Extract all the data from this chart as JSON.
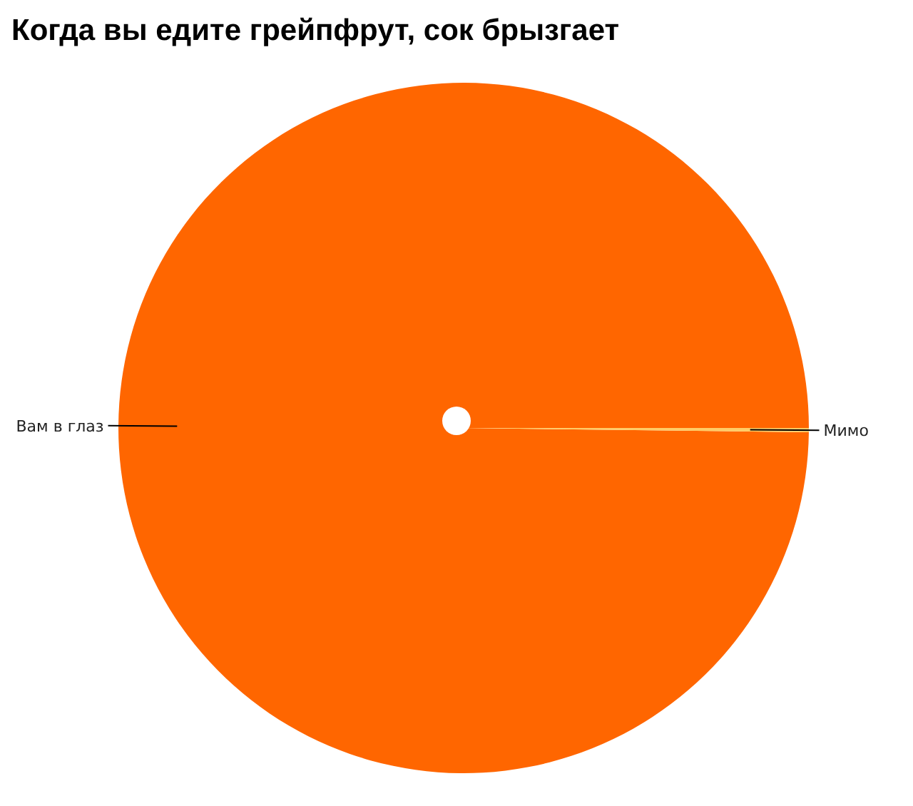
{
  "chart_data": {
    "type": "pie",
    "title": "Когда вы едите грейпфрут, сок брызгает",
    "categories": [
      "Вам в глаз",
      "Мимо"
    ],
    "values": [
      99.8,
      0.2
    ],
    "colors": [
      "#ff6600",
      "#ffcc66"
    ],
    "legend": false
  }
}
